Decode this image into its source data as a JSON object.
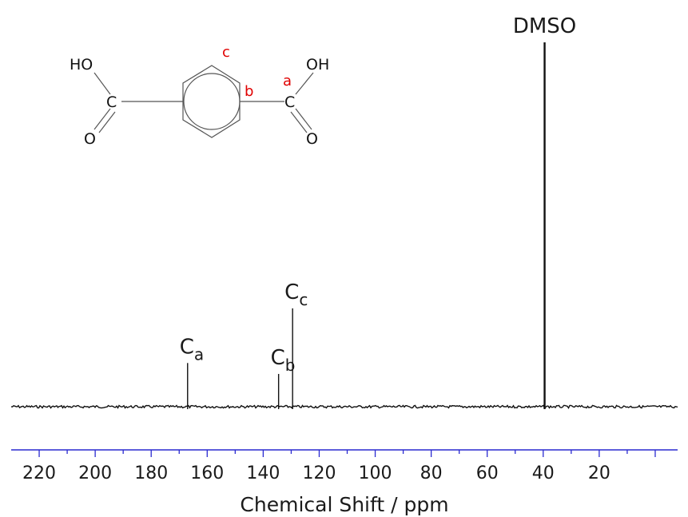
{
  "chart_data": {
    "type": "line",
    "xlabel": "Chemical Shift / ppm",
    "ylabel": "",
    "xlim": [
      230,
      -8
    ],
    "x_reversed": true,
    "x_ticks": [
      220,
      200,
      180,
      160,
      140,
      120,
      100,
      80,
      60,
      40,
      20
    ],
    "grid": false,
    "peaks": [
      {
        "label": "C",
        "sub": "a",
        "shift": 167.0,
        "intensity": 0.12
      },
      {
        "label": "C",
        "sub": "b",
        "shift": 134.5,
        "intensity": 0.09
      },
      {
        "label": "C",
        "sub": "c",
        "shift": 129.5,
        "intensity": 0.27
      },
      {
        "label": "DMSO",
        "sub": "",
        "shift": 39.5,
        "intensity": 1.0
      }
    ],
    "colors": {
      "axis": "#2a2ad0",
      "spectrum": "#111111",
      "label_red": "#e00000"
    }
  },
  "structure": {
    "atoms": {
      "hydroxyl_left": "HO",
      "hydroxyl_right": "OH",
      "carbon_left": "C",
      "carbon_right": "C",
      "oxygen_left": "O",
      "oxygen_right": "O"
    },
    "position_labels": {
      "a": "a",
      "b": "b",
      "c": "c"
    }
  }
}
